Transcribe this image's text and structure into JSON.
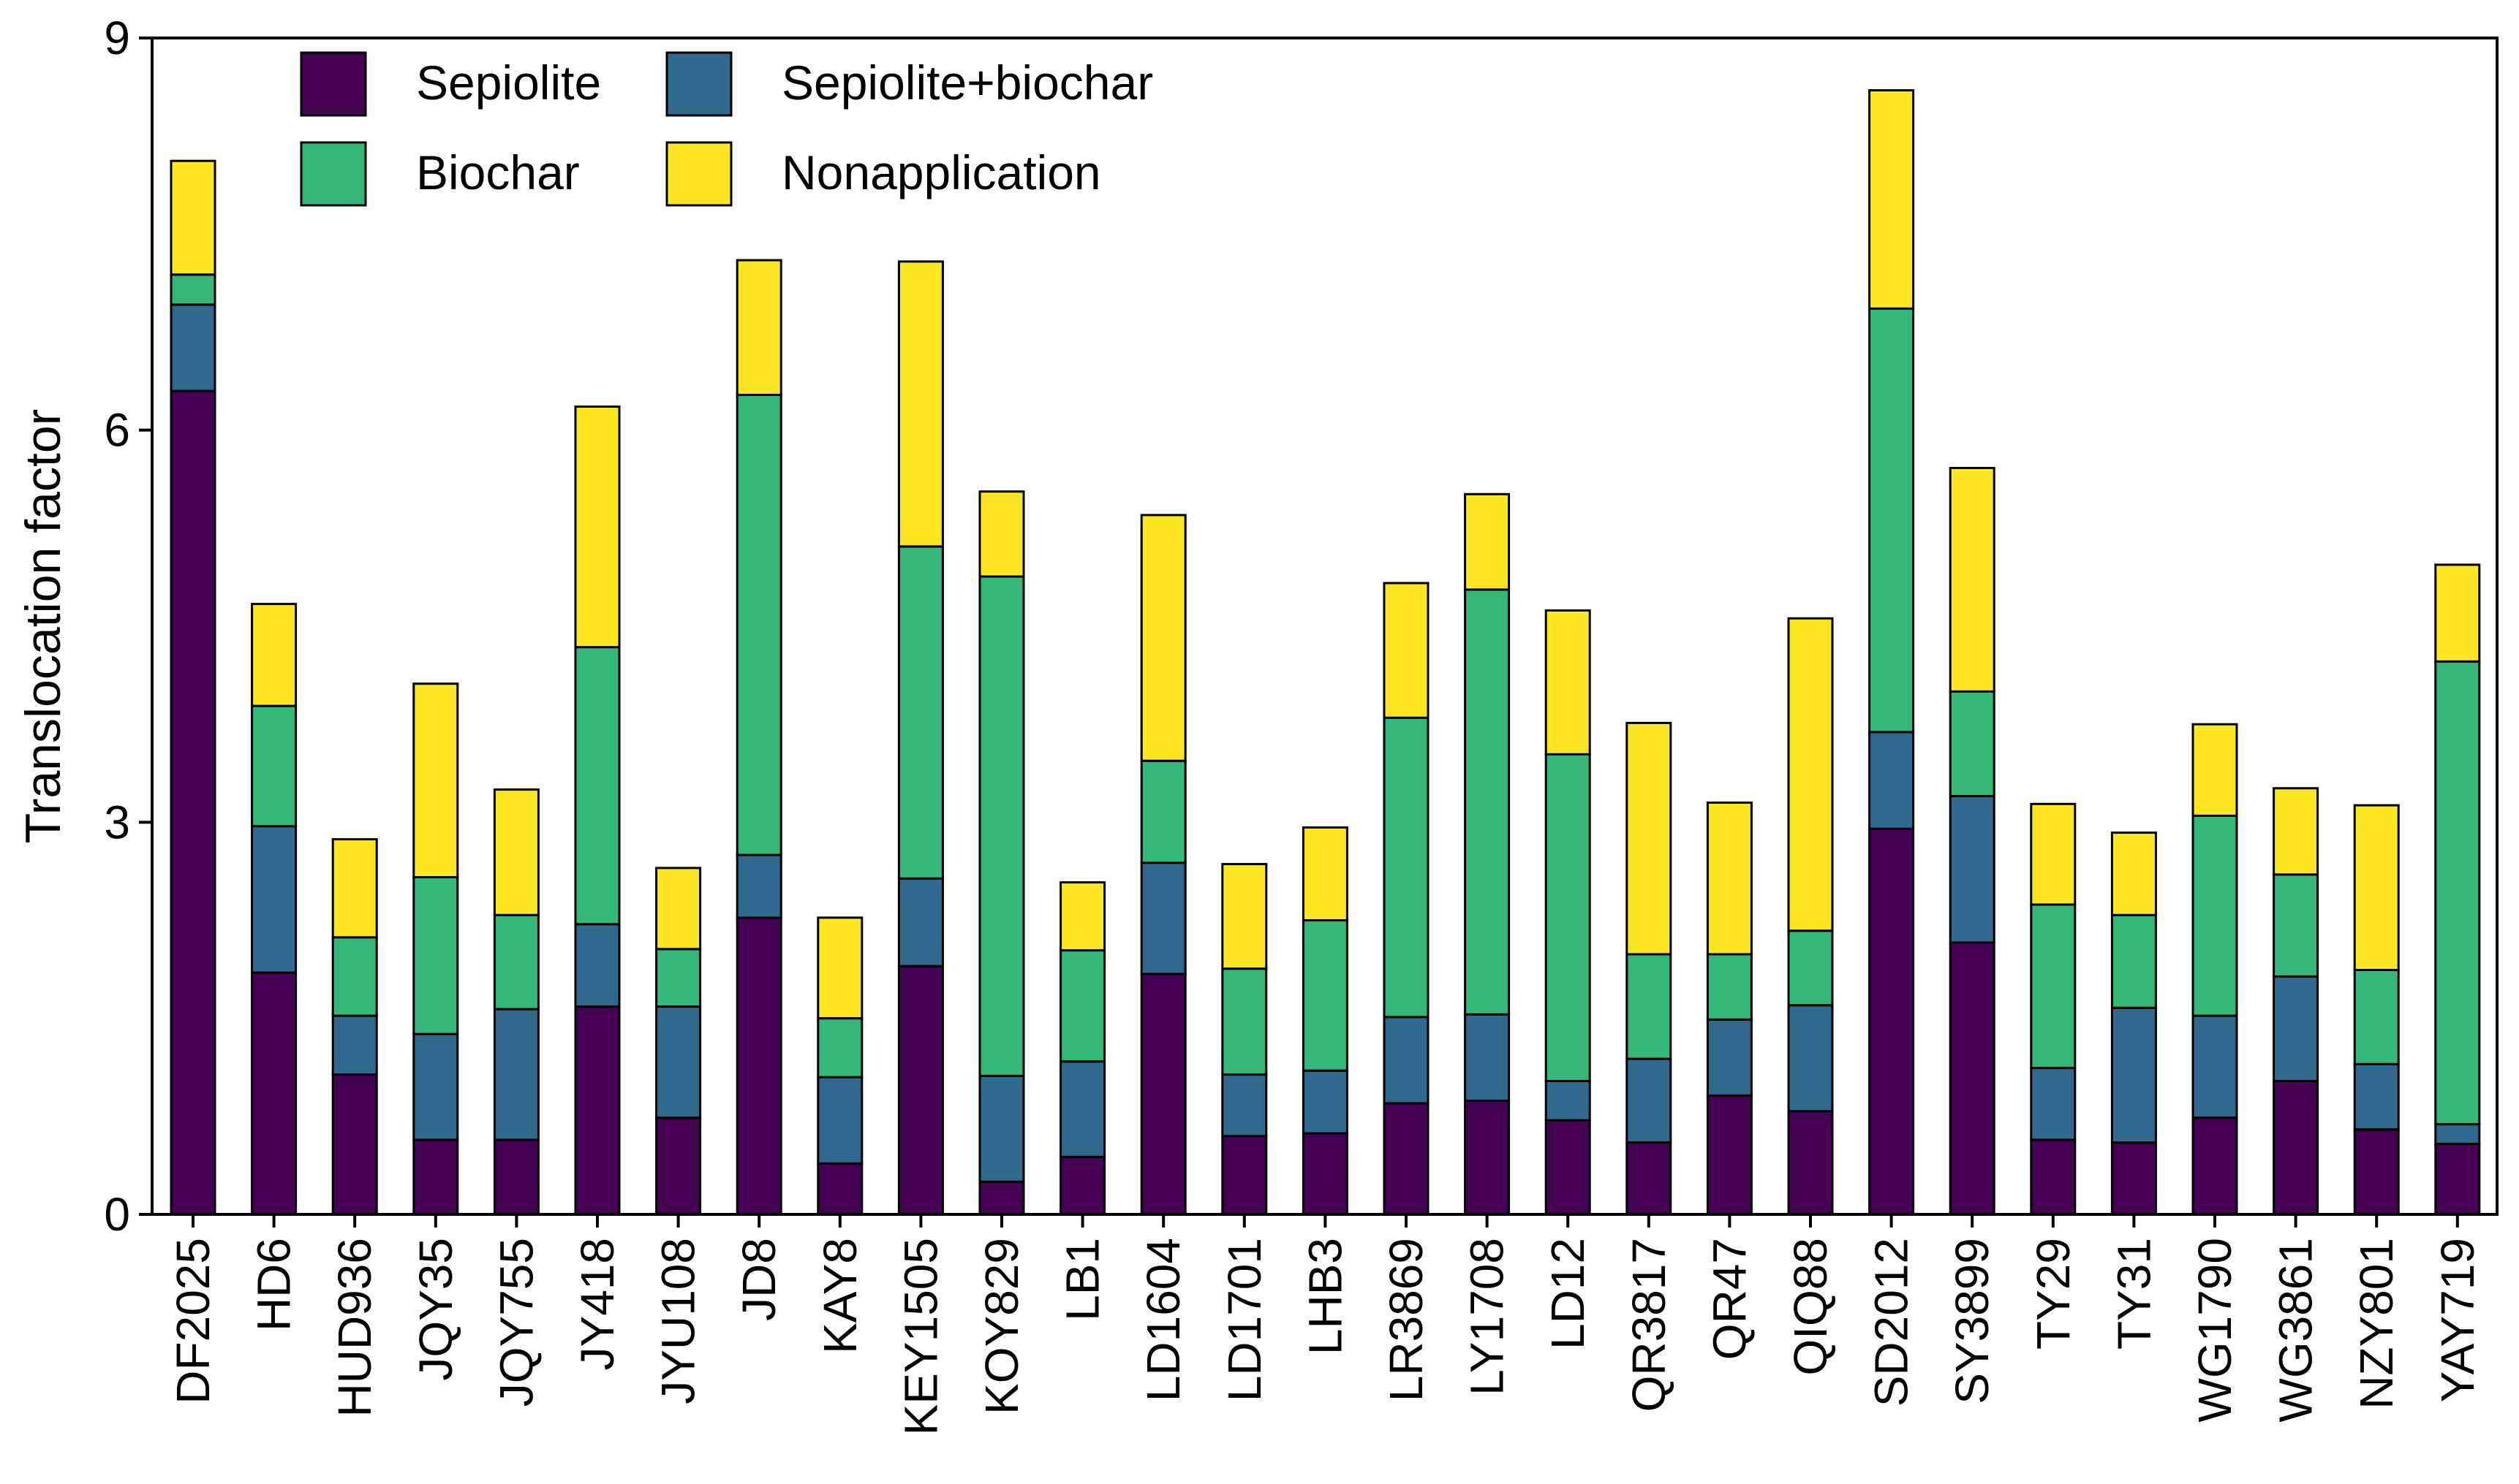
{
  "chart_data": {
    "type": "bar",
    "stacked": true,
    "title": "",
    "xlabel": "",
    "ylabel": "Translocation factor",
    "ylim": [
      0,
      9
    ],
    "yticks": [
      0,
      3,
      6,
      9
    ],
    "legend_position": "top-left",
    "categories": [
      "DF2025",
      "HD6",
      "HUD936",
      "JQY35",
      "JQY755",
      "JY418",
      "JYU108",
      "JD8",
      "KAY8",
      "KEY1505",
      "KOY829",
      "LB1",
      "LD1604",
      "LD1701",
      "LHB3",
      "LR3869",
      "LY1708",
      "LD12",
      "QR3817",
      "QR47",
      "QIQ88",
      "SD2012",
      "SY3899",
      "TY29",
      "TY31",
      "WG1790",
      "WG3861",
      "NZY801",
      "YAY719"
    ],
    "series": [
      {
        "name": "Sepiolite",
        "color": "#440154",
        "values": [
          6.3,
          1.85,
          1.07,
          0.57,
          0.57,
          1.59,
          0.74,
          2.27,
          0.39,
          1.9,
          0.25,
          0.44,
          1.84,
          0.6,
          0.62,
          0.85,
          0.87,
          0.72,
          0.55,
          0.91,
          0.79,
          2.95,
          2.08,
          0.57,
          0.55,
          0.74,
          1.02,
          0.65,
          0.54
        ]
      },
      {
        "name": "Sepiolite+biochar",
        "color": "#31688e",
        "values": [
          0.66,
          1.12,
          0.45,
          0.81,
          1.0,
          0.63,
          0.85,
          0.48,
          0.66,
          0.67,
          0.81,
          0.73,
          0.85,
          0.47,
          0.48,
          0.66,
          0.66,
          0.3,
          0.64,
          0.58,
          0.81,
          0.74,
          1.12,
          0.55,
          1.03,
          0.78,
          0.8,
          0.5,
          0.15
        ]
      },
      {
        "name": "Biochar",
        "color": "#35b779",
        "values": [
          0.23,
          0.92,
          0.6,
          1.2,
          0.72,
          2.12,
          0.44,
          3.52,
          0.45,
          2.54,
          3.82,
          0.85,
          0.78,
          0.81,
          1.15,
          2.29,
          3.25,
          2.5,
          0.8,
          0.5,
          0.57,
          3.24,
          0.8,
          1.25,
          0.71,
          1.53,
          0.78,
          0.72,
          3.54
        ]
      },
      {
        "name": "Nonapplication",
        "color": "#fde725",
        "values": [
          0.87,
          0.78,
          0.75,
          1.48,
          0.96,
          1.84,
          0.62,
          1.03,
          0.77,
          2.18,
          0.65,
          0.52,
          1.88,
          0.8,
          0.71,
          1.03,
          0.73,
          1.1,
          1.77,
          1.16,
          2.39,
          1.67,
          1.71,
          0.77,
          0.63,
          0.7,
          0.66,
          1.26,
          0.74
        ]
      }
    ]
  }
}
